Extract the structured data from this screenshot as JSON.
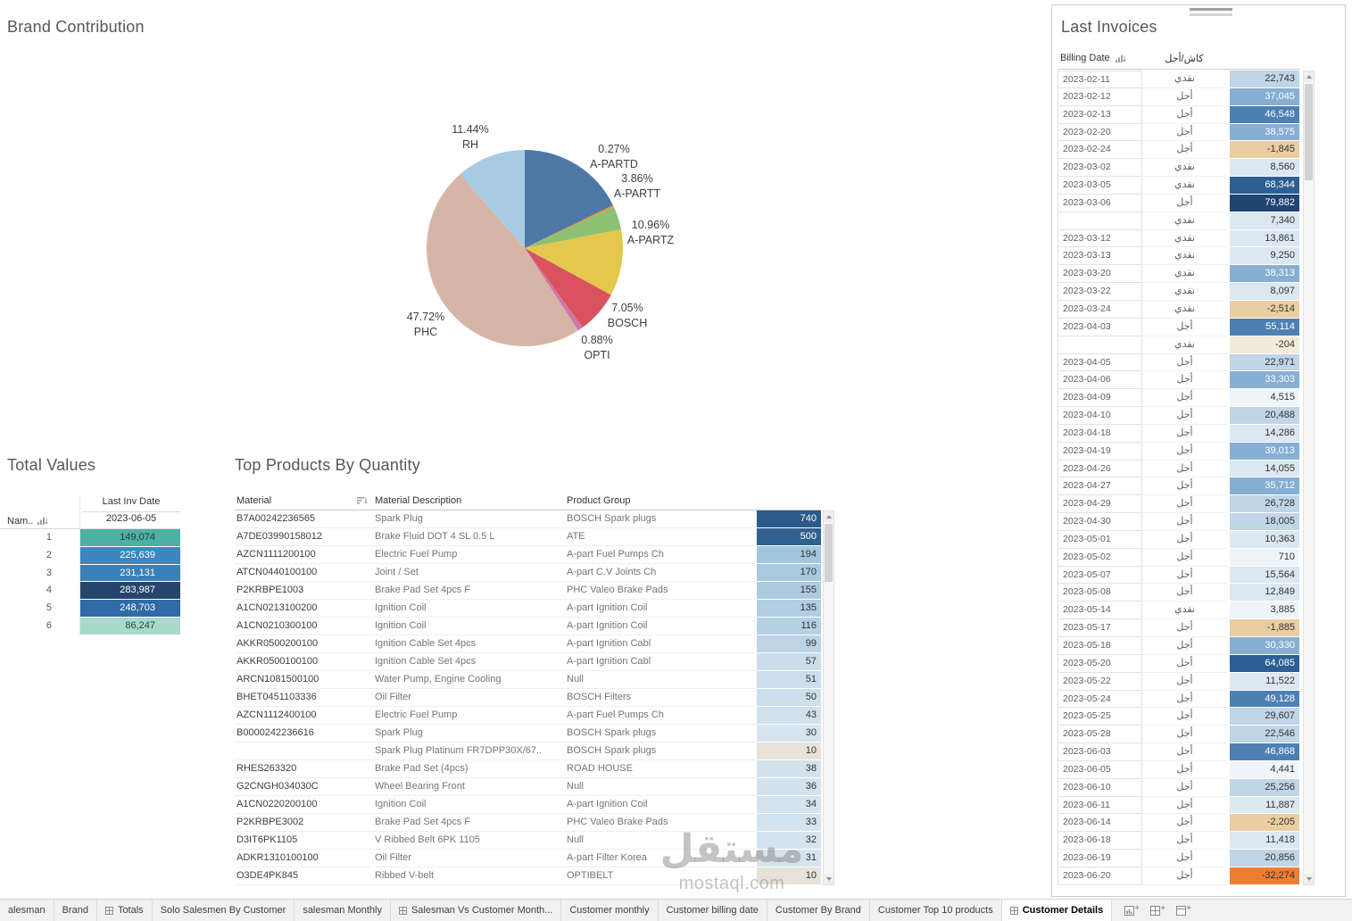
{
  "chart_data": {
    "type": "pie",
    "title": "Brand Contribution",
    "slices": [
      {
        "name": "",
        "pct": 17.82,
        "pct_label": "",
        "color": "#4e79a7"
      },
      {
        "name": "A-PARTD",
        "pct": 0.27,
        "pct_label": "0.27%",
        "color": "#f28e2b"
      },
      {
        "name": "A-PARTT",
        "pct": 3.86,
        "pct_label": "3.86%",
        "color": "#8cc171"
      },
      {
        "name": "A-PARTZ",
        "pct": 10.96,
        "pct_label": "10.96%",
        "color": "#e3c84d"
      },
      {
        "name": "BOSCH",
        "pct": 7.05,
        "pct_label": "7.05%",
        "color": "#d8535f"
      },
      {
        "name": "OPTI",
        "pct": 0.88,
        "pct_label": "0.88%",
        "color": "#cc79a7"
      },
      {
        "name": "PHC",
        "pct": 47.72,
        "pct_label": "47.72%",
        "color": "#d7b5a6"
      },
      {
        "name": "RH",
        "pct": 11.44,
        "pct_label": "11.44%",
        "color": "#a8cbe4"
      }
    ]
  },
  "totals": {
    "title": "Total Values",
    "header": {
      "name_col": "Nam..",
      "date_col": "Last Inv Date",
      "date_value": "2023-06-05"
    },
    "rows": [
      {
        "n": "1",
        "value": "149,074",
        "bg": "#4db0a5",
        "fg": "#1d3f3a"
      },
      {
        "n": "2",
        "value": "225,639",
        "bg": "#3e86bf",
        "fg": "#ffffff"
      },
      {
        "n": "3",
        "value": "231,131",
        "bg": "#3a80b8",
        "fg": "#ffffff"
      },
      {
        "n": "4",
        "value": "283,987",
        "bg": "#26456e",
        "fg": "#ffffff"
      },
      {
        "n": "5",
        "value": "248,703",
        "bg": "#2f6ba6",
        "fg": "#ffffff"
      },
      {
        "n": "6",
        "value": "86,247",
        "bg": "#a9d8cd",
        "fg": "#2a4a44"
      }
    ]
  },
  "products": {
    "title": "Top Products By Quantity",
    "header": {
      "material": "Material",
      "description": "Material Description",
      "group": "Product Group"
    },
    "rows": [
      {
        "material": "B7A00242236565",
        "description": "Spark Plug",
        "group": "BOSCH Spark plugs",
        "value": "740",
        "bg": "#2b5a8b",
        "fg": "#ffffff"
      },
      {
        "material": "A7DE03990158012",
        "description": "Brake Fluid DOT 4 SL 0.5 L",
        "group": "ATE",
        "value": "500",
        "bg": "#31618f",
        "fg": "#ffffff"
      },
      {
        "material": "AZCN1111200100",
        "description": "Electric Fuel Pump",
        "group": "A-part Fuel Pumps Ch",
        "value": "194",
        "bg": "#a2c5de",
        "fg": "#333333"
      },
      {
        "material": "ATCN0440100100",
        "description": "Joint / Set",
        "group": "A-part C.V Joints Ch",
        "value": "170",
        "bg": "#a8c9e0",
        "fg": "#333333"
      },
      {
        "material": "P2KRBPE1003",
        "description": "Brake Pad Set 4pcs F",
        "group": "PHC Valeo Brake Pads",
        "value": "155",
        "bg": "#accbe1",
        "fg": "#333333"
      },
      {
        "material": "A1CN0213100200",
        "description": "Ignition Coil",
        "group": "A-part Ignition Coil",
        "value": "135",
        "bg": "#b1cee3",
        "fg": "#333333"
      },
      {
        "material": "A1CN0210300100",
        "description": "Ignition Coil",
        "group": "A-part Ignition Coil",
        "value": "116",
        "bg": "#b6d1e4",
        "fg": "#333333"
      },
      {
        "material": "AKKR0500200100",
        "description": "Ignition Cable Set 4pcs",
        "group": "A-part Ignition Cabl",
        "value": "99",
        "bg": "#bcd4e6",
        "fg": "#333333"
      },
      {
        "material": "AKKR0500100100",
        "description": "Ignition Cable Set 4pcs",
        "group": "A-part Ignition Cabl",
        "value": "57",
        "bg": "#cbddeb",
        "fg": "#333333"
      },
      {
        "material": "ARCN1081500100",
        "description": "Water Pump, Engine Cooling",
        "group": "Null",
        "value": "51",
        "bg": "#cddeec",
        "fg": "#333333"
      },
      {
        "material": "BHET0451103336",
        "description": "Oil Filter",
        "group": "BOSCH Filters",
        "value": "50",
        "bg": "#cedfec",
        "fg": "#333333"
      },
      {
        "material": "AZCN1112400100",
        "description": "Electric Fuel Pump",
        "group": "A-part Fuel Pumps Ch",
        "value": "43",
        "bg": "#d1e0ed",
        "fg": "#333333"
      },
      {
        "material": "B0000242236616",
        "description": "Spark Plug",
        "group": "BOSCH Spark plugs",
        "value": "30",
        "bg": "#d6e4ef",
        "fg": "#333333"
      },
      {
        "material": "",
        "description": "Spark Plug Platinum FR7DPP30X/67..",
        "group": "BOSCH Spark plugs",
        "value": "10",
        "bg": "#e7e3d9",
        "fg": "#333333"
      },
      {
        "material": "RHES263320",
        "description": "Brake Pad Set (4pcs)",
        "group": "ROAD HOUSE",
        "value": "38",
        "bg": "#d3e2ed",
        "fg": "#333333"
      },
      {
        "material": "G2CNGH034030C",
        "description": "Wheel Bearing Front",
        "group": "Null",
        "value": "36",
        "bg": "#d4e2ee",
        "fg": "#333333"
      },
      {
        "material": "A1CN0220200100",
        "description": "Ignition Coil",
        "group": "A-part Ignition Coil",
        "value": "34",
        "bg": "#d4e3ee",
        "fg": "#333333"
      },
      {
        "material": "P2KRBPE3002",
        "description": "Brake Pad Set 4pcs F",
        "group": "PHC Valeo Brake Pads",
        "value": "33",
        "bg": "#d5e3ee",
        "fg": "#333333"
      },
      {
        "material": "D3IT6PK1105",
        "description": "V Ribbed Belt 6PK 1105",
        "group": "Null",
        "value": "32",
        "bg": "#d5e3ee",
        "fg": "#333333"
      },
      {
        "material": "ADKR1310100100",
        "description": "Oil Filter",
        "group": "A-part Filter Korea",
        "value": "31",
        "bg": "#d6e4ef",
        "fg": "#333333"
      },
      {
        "material": "O3DE4PK845",
        "description": "Ribbed V-belt",
        "group": "OPTIBELT",
        "value": "10",
        "bg": "#e7e3d9",
        "fg": "#333333"
      }
    ]
  },
  "invoices": {
    "title": "Last Invoices",
    "header": {
      "date": "Billing Date",
      "paytype": "كاش/أجل"
    },
    "palette": {
      "n2": "#ed7d31",
      "n1": "#eacda1",
      "n0": "#f4ead9",
      "p0": "#eff4f8",
      "p1": "#dbe7f1",
      "p2": "#c0d5e7",
      "p3": "#87aed3",
      "p4": "#4d80b3",
      "p5": "#2d5f94",
      "p6": "#1f4570"
    },
    "white_text_tones": [
      "p3",
      "p4",
      "p5",
      "p6"
    ],
    "rows": [
      {
        "date": "2023-02-11",
        "type": "نقدي",
        "value": "22,743",
        "tone": "p2"
      },
      {
        "date": "2023-02-12",
        "type": "أجل",
        "value": "37,045",
        "tone": "p3"
      },
      {
        "date": "2023-02-13",
        "type": "أجل",
        "value": "46,548",
        "tone": "p4"
      },
      {
        "date": "2023-02-20",
        "type": "أجل",
        "value": "38,575",
        "tone": "p3"
      },
      {
        "date": "2023-02-24",
        "type": "أجل",
        "value": "-1,845",
        "tone": "n1"
      },
      {
        "date": "2023-03-02",
        "type": "نقدي",
        "value": "8,560",
        "tone": "p1"
      },
      {
        "date": "2023-03-05",
        "type": "نقدي",
        "value": "68,344",
        "tone": "p5"
      },
      {
        "date": "2023-03-06",
        "type": "أجل",
        "value": "79,882",
        "tone": "p6"
      },
      {
        "date": "",
        "type": "نقدي",
        "value": "7,340",
        "tone": "p1"
      },
      {
        "date": "2023-03-12",
        "type": "نقدي",
        "value": "13,861",
        "tone": "p1"
      },
      {
        "date": "2023-03-13",
        "type": "نقدي",
        "value": "9,250",
        "tone": "p1"
      },
      {
        "date": "2023-03-20",
        "type": "نقدي",
        "value": "38,313",
        "tone": "p3"
      },
      {
        "date": "2023-03-22",
        "type": "نقدي",
        "value": "8,097",
        "tone": "p1"
      },
      {
        "date": "2023-03-24",
        "type": "نقدي",
        "value": "-2,514",
        "tone": "n1"
      },
      {
        "date": "2023-04-03",
        "type": "أجل",
        "value": "55,114",
        "tone": "p4"
      },
      {
        "date": "",
        "type": "نقدي",
        "value": "-204",
        "tone": "n0"
      },
      {
        "date": "2023-04-05",
        "type": "أجل",
        "value": "22,971",
        "tone": "p2"
      },
      {
        "date": "2023-04-06",
        "type": "أجل",
        "value": "33,303",
        "tone": "p3"
      },
      {
        "date": "2023-04-09",
        "type": "أجل",
        "value": "4,515",
        "tone": "p0"
      },
      {
        "date": "2023-04-10",
        "type": "أجل",
        "value": "20,488",
        "tone": "p2"
      },
      {
        "date": "2023-04-18",
        "type": "أجل",
        "value": "14,286",
        "tone": "p1"
      },
      {
        "date": "2023-04-19",
        "type": "أجل",
        "value": "39,013",
        "tone": "p3"
      },
      {
        "date": "2023-04-26",
        "type": "أجل",
        "value": "14,055",
        "tone": "p1"
      },
      {
        "date": "2023-04-27",
        "type": "أجل",
        "value": "35,712",
        "tone": "p3"
      },
      {
        "date": "2023-04-29",
        "type": "أجل",
        "value": "26,728",
        "tone": "p2"
      },
      {
        "date": "2023-04-30",
        "type": "أجل",
        "value": "18,005",
        "tone": "p2"
      },
      {
        "date": "2023-05-01",
        "type": "أجل",
        "value": "10,363",
        "tone": "p1"
      },
      {
        "date": "2023-05-02",
        "type": "أجل",
        "value": "710",
        "tone": "p0"
      },
      {
        "date": "2023-05-07",
        "type": "أجل",
        "value": "15,564",
        "tone": "p1"
      },
      {
        "date": "2023-05-08",
        "type": "أجل",
        "value": "12,849",
        "tone": "p1"
      },
      {
        "date": "2023-05-14",
        "type": "نقدي",
        "value": "3,885",
        "tone": "p0"
      },
      {
        "date": "2023-05-17",
        "type": "أجل",
        "value": "-1,885",
        "tone": "n1"
      },
      {
        "date": "2023-05-18",
        "type": "أجل",
        "value": "30,330",
        "tone": "p3"
      },
      {
        "date": "2023-05-20",
        "type": "أجل",
        "value": "64,085",
        "tone": "p5"
      },
      {
        "date": "2023-05-22",
        "type": "أجل",
        "value": "11,522",
        "tone": "p1"
      },
      {
        "date": "2023-05-24",
        "type": "أجل",
        "value": "49,128",
        "tone": "p4"
      },
      {
        "date": "2023-05-25",
        "type": "أجل",
        "value": "29,607",
        "tone": "p2"
      },
      {
        "date": "2023-05-28",
        "type": "أجل",
        "value": "22,546",
        "tone": "p2"
      },
      {
        "date": "2023-06-03",
        "type": "أجل",
        "value": "46,868",
        "tone": "p4"
      },
      {
        "date": "2023-06-05",
        "type": "أجل",
        "value": "4,441",
        "tone": "p0"
      },
      {
        "date": "2023-06-10",
        "type": "أجل",
        "value": "25,256",
        "tone": "p2"
      },
      {
        "date": "2023-06-11",
        "type": "أجل",
        "value": "11,887",
        "tone": "p1"
      },
      {
        "date": "2023-06-14",
        "type": "أجل",
        "value": "-2,205",
        "tone": "n1"
      },
      {
        "date": "2023-06-18",
        "type": "أجل",
        "value": "11,418",
        "tone": "p1"
      },
      {
        "date": "2023-06-19",
        "type": "أجل",
        "value": "20,856",
        "tone": "p2"
      },
      {
        "date": "2023-06-20",
        "type": "أجل",
        "value": "-32,274",
        "tone": "n2"
      }
    ]
  },
  "watermark": {
    "line1": "مستقل",
    "line2": "mostaql.com"
  },
  "tabs": [
    {
      "label": "alesman",
      "icon": false,
      "active": false
    },
    {
      "label": "Brand",
      "icon": false,
      "active": false
    },
    {
      "label": "Totals",
      "icon": true,
      "active": false
    },
    {
      "label": "Solo Salesmen By Customer",
      "icon": false,
      "active": false
    },
    {
      "label": "salesman Monthly",
      "icon": false,
      "active": false
    },
    {
      "label": "Salesman Vs Customer Month...",
      "icon": true,
      "active": false
    },
    {
      "label": "Customer monthly",
      "icon": false,
      "active": false
    },
    {
      "label": "Customer billing date",
      "icon": false,
      "active": false
    },
    {
      "label": "Customer By Brand",
      "icon": false,
      "active": false
    },
    {
      "label": "Customer Top 10 products",
      "icon": false,
      "active": false
    },
    {
      "label": "Customer Details",
      "icon": true,
      "active": true
    }
  ],
  "icons": {
    "sort": "sort-bars-arrow",
    "dashboard_tab": "grid",
    "new_worksheet": "chart-plus",
    "new_dashboard": "grid-plus",
    "new_story": "book-plus",
    "scroll_up": "triangle-up",
    "scroll_down": "triangle-down"
  }
}
